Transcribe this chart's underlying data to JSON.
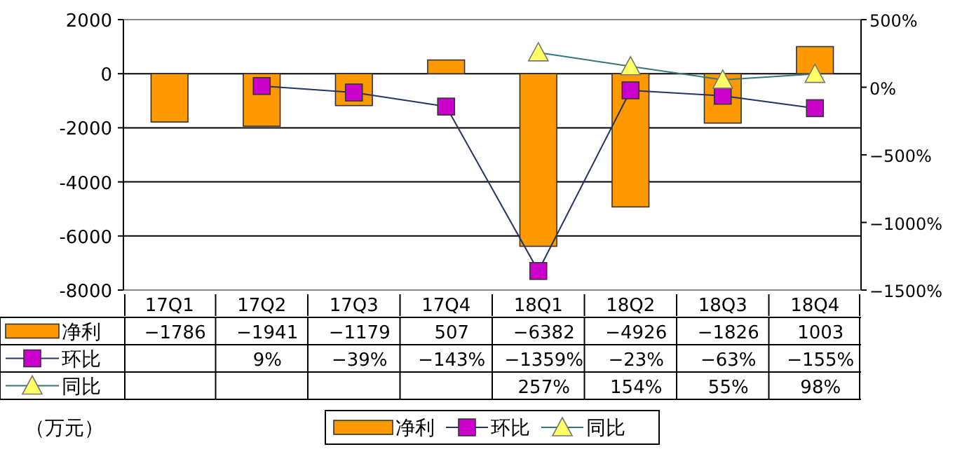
{
  "chart_data": {
    "type": "bar",
    "categories": [
      "17Q1",
      "17Q2",
      "17Q3",
      "17Q4",
      "18Q1",
      "18Q2",
      "18Q3",
      "18Q4"
    ],
    "series": [
      {
        "name": "净利",
        "type": "bar",
        "color": "#ff9900",
        "values": [
          -1786,
          -1941,
          -1179,
          507,
          -6382,
          -4926,
          -1826,
          1003
        ],
        "value_labels": [
          "−1786",
          "−1941",
          "−1179",
          "507",
          "−6382",
          "−4926",
          "−1826",
          "1003"
        ]
      },
      {
        "name": "环比",
        "type": "line",
        "axis": "y2",
        "marker": "square",
        "color": "#cc00cc",
        "values": [
          null,
          9,
          -39,
          -143,
          -1359,
          -23,
          -63,
          -155
        ],
        "value_labels": [
          null,
          "9%",
          "−39%",
          "−143%",
          "−1359%",
          "−23%",
          "−63%",
          "−155%"
        ]
      },
      {
        "name": "同比",
        "type": "line",
        "axis": "y2",
        "marker": "triangle",
        "color": "#ffff66",
        "values": [
          null,
          null,
          null,
          null,
          257,
          154,
          55,
          98
        ],
        "value_labels": [
          null,
          null,
          null,
          null,
          "257%",
          "154%",
          "55%",
          "98%"
        ]
      }
    ],
    "ylim": [
      -8000,
      2000
    ],
    "yticks": [
      -8000,
      -6000,
      -4000,
      -2000,
      0,
      2000
    ],
    "y2lim": [
      -1500,
      500
    ],
    "y2ticks": [
      {
        "value": -1500,
        "label": "−1500%"
      },
      {
        "value": -1000,
        "label": "−1000%"
      },
      {
        "value": -500,
        "label": "−500%"
      },
      {
        "value": 0,
        "label": "0%"
      },
      {
        "value": 500,
        "label": "500%"
      }
    ],
    "grid": "y",
    "legend": "bottom",
    "annotations": [
      "（万元）"
    ]
  }
}
